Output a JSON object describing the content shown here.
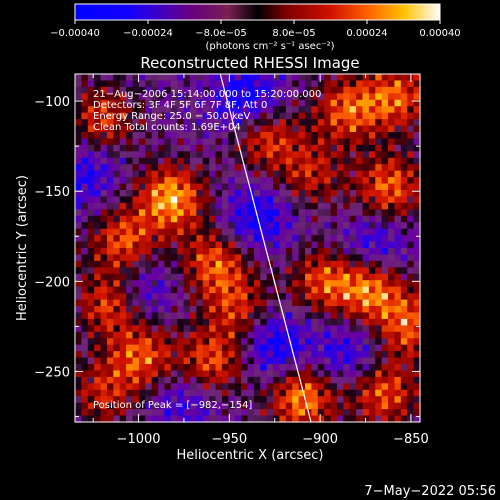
{
  "chart_data": {
    "type": "heatmap",
    "title": "Reconstructed RHESSI Image",
    "xlabel": "Heliocentric X (arcsec)",
    "ylabel": "Heliocentric Y (arcsec)",
    "xlim": [
      -1035,
      -845
    ],
    "ylim": [
      -278,
      -85
    ],
    "x_ticks": [
      -1000,
      -950,
      -900,
      -850
    ],
    "x_tick_labels": [
      "−1000",
      "−950",
      "−900",
      "−850"
    ],
    "y_ticks": [
      -100,
      -150,
      -200,
      -250
    ],
    "y_tick_labels": [
      "−100",
      "−150",
      "−200",
      "−250"
    ],
    "colorbar": {
      "range": [
        -0.0004,
        0.0004
      ],
      "ticks": [
        -0.0004,
        -0.00024,
        -8e-05,
        8e-05,
        0.00024,
        0.0004
      ],
      "tick_labels": [
        "−0.00040",
        "−0.00024",
        "−8.0e−05",
        "8.0e−05",
        "0.00024",
        "0.00040"
      ],
      "unit_label": "(photons cm⁻² s⁻¹ asec⁻²)"
    },
    "info_lines": [
      "21−Aug−2006 15:14:00.000 to 15:20:00.000",
      "Detectors: 3F 4F 5F 6F 7F 8F, Att 0",
      "Energy Range: 25.0 − 50.0 keV",
      "Clean    Total counts: 1.69E+04"
    ],
    "peak_label": "Position of Peak = [−982,−154]",
    "peak_position": [
      -982,
      -154
    ],
    "limb_line": [
      [
        -955,
        -85
      ],
      [
        -905,
        -278
      ]
    ],
    "hotspots": [
      {
        "x": -982,
        "y": -154,
        "amp": 0.0004
      },
      {
        "x": -1020,
        "y": -110,
        "amp": 0.00026
      },
      {
        "x": -1008,
        "y": -178,
        "amp": 0.0003
      },
      {
        "x": -1015,
        "y": -212,
        "amp": 0.00032
      },
      {
        "x": -998,
        "y": -242,
        "amp": 0.0003
      },
      {
        "x": -960,
        "y": -245,
        "amp": 0.0003
      },
      {
        "x": -945,
        "y": -215,
        "amp": 0.00024
      },
      {
        "x": -958,
        "y": -190,
        "amp": 0.0003
      },
      {
        "x": -930,
        "y": -120,
        "amp": 0.00028
      },
      {
        "x": -905,
        "y": -140,
        "amp": 0.00022
      },
      {
        "x": -885,
        "y": -105,
        "amp": 0.0003
      },
      {
        "x": -858,
        "y": -98,
        "amp": 0.0003
      },
      {
        "x": -862,
        "y": -148,
        "amp": 0.00032
      },
      {
        "x": -872,
        "y": -205,
        "amp": 0.00034
      },
      {
        "x": -850,
        "y": -225,
        "amp": 0.0003
      },
      {
        "x": -898,
        "y": -200,
        "amp": 0.00028
      },
      {
        "x": -910,
        "y": -265,
        "amp": 0.00036
      },
      {
        "x": -865,
        "y": -262,
        "amp": 0.0003
      },
      {
        "x": -1020,
        "y": -262,
        "amp": 0.00022
      }
    ],
    "coldspots": [
      {
        "x": -940,
        "y": -100,
        "amp": -0.00026
      },
      {
        "x": -935,
        "y": -165,
        "amp": -0.00022
      },
      {
        "x": -1000,
        "y": -205,
        "amp": -0.0002
      },
      {
        "x": -925,
        "y": -235,
        "amp": -0.00024
      },
      {
        "x": -885,
        "y": -240,
        "amp": -0.00018
      },
      {
        "x": -870,
        "y": -180,
        "amp": -0.00018
      },
      {
        "x": -1030,
        "y": -140,
        "amp": -0.00018
      },
      {
        "x": -975,
        "y": -265,
        "amp": -0.00016
      }
    ]
  },
  "footer": {
    "timestamp": "7−May−2022 05:56"
  }
}
